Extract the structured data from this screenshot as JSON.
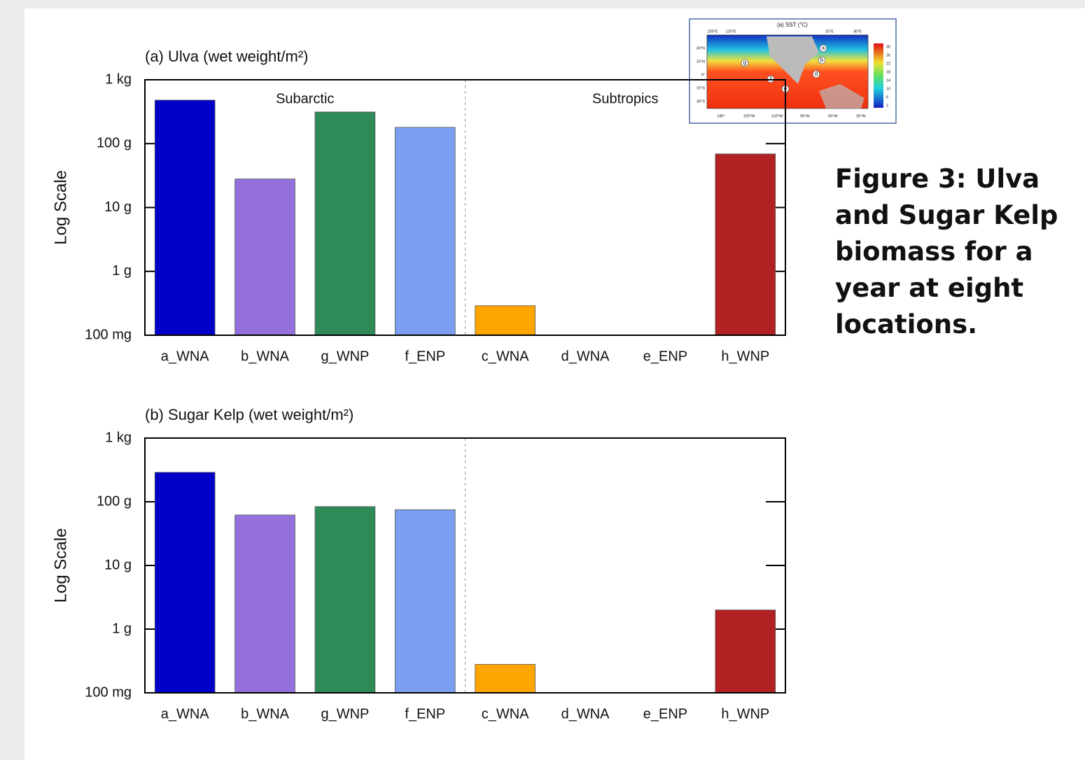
{
  "chart_data": [
    {
      "type": "bar",
      "title": "(a) Ulva (wet weight/m²)",
      "y_label": "Log Scale",
      "categories": [
        "a_WNA",
        "b_WNA",
        "g_WNP",
        "f_ENP",
        "c_WNA",
        "d_WNA",
        "e_ENP",
        "h_WNP"
      ],
      "values": [
        480,
        28,
        313,
        180,
        0.29,
        null,
        null,
        69
      ],
      "colors": [
        "#0000c8",
        "#9370db",
        "#2e8b57",
        "#7b9ef0",
        "#ffa500",
        "#0000c8",
        "#0000c8",
        "#b22222"
      ],
      "annotations": [
        "Subarctic",
        "Subtropics"
      ],
      "log_scale": true,
      "grid": false,
      "ylim": [
        0.1,
        1000
      ],
      "yticks": [
        {
          "value": 0.1,
          "label": "100 mg"
        },
        {
          "value": 1,
          "label": "1 g"
        },
        {
          "value": 10,
          "label": "10 g"
        },
        {
          "value": 100,
          "label": "100 g"
        },
        {
          "value": 1000,
          "label": "1 kg"
        }
      ]
    },
    {
      "type": "bar",
      "title": "(b) Sugar Kelp (wet weight/m²)",
      "y_label": "Log Scale",
      "categories": [
        "a_WNA",
        "b_WNA",
        "g_WNP",
        "f_ENP",
        "c_WNA",
        "d_WNA",
        "e_ENP",
        "h_WNP"
      ],
      "values": [
        290,
        62,
        84,
        75,
        0.28,
        null,
        null,
        2.0
      ],
      "colors": [
        "#0000c8",
        "#9370db",
        "#2e8b57",
        "#7b9ef0",
        "#ffa500",
        "#0000c8",
        "#0000c8",
        "#b22222"
      ],
      "log_scale": true,
      "grid": false,
      "ylim": [
        0.1,
        1000
      ],
      "yticks": [
        {
          "value": 0.1,
          "label": "100 mg"
        },
        {
          "value": 1,
          "label": "1 g"
        },
        {
          "value": 10,
          "label": "10 g"
        },
        {
          "value": 100,
          "label": "100 g"
        },
        {
          "value": 1000,
          "label": "1 kg"
        }
      ]
    }
  ],
  "inset_map": {
    "title": "(a) SST (°C)",
    "top_labels": [
      "105°E",
      "120°E",
      "15°E",
      "30°E"
    ],
    "bottom_labels": [
      "180°",
      "150°W",
      "120°W",
      "90°W",
      "60°W",
      "30°W"
    ],
    "lat_labels": [
      "30°N",
      "15°N",
      "0°",
      "15°S",
      "30°S"
    ],
    "colorbar_labels": [
      "30",
      "26",
      "22",
      "18",
      "14",
      "10",
      "6",
      "2"
    ],
    "sites": [
      "a",
      "b",
      "d",
      "e",
      "f",
      "g"
    ]
  },
  "caption": "Figure 3: Ulva and Sugar Kelp biomass for a year at eight locations."
}
